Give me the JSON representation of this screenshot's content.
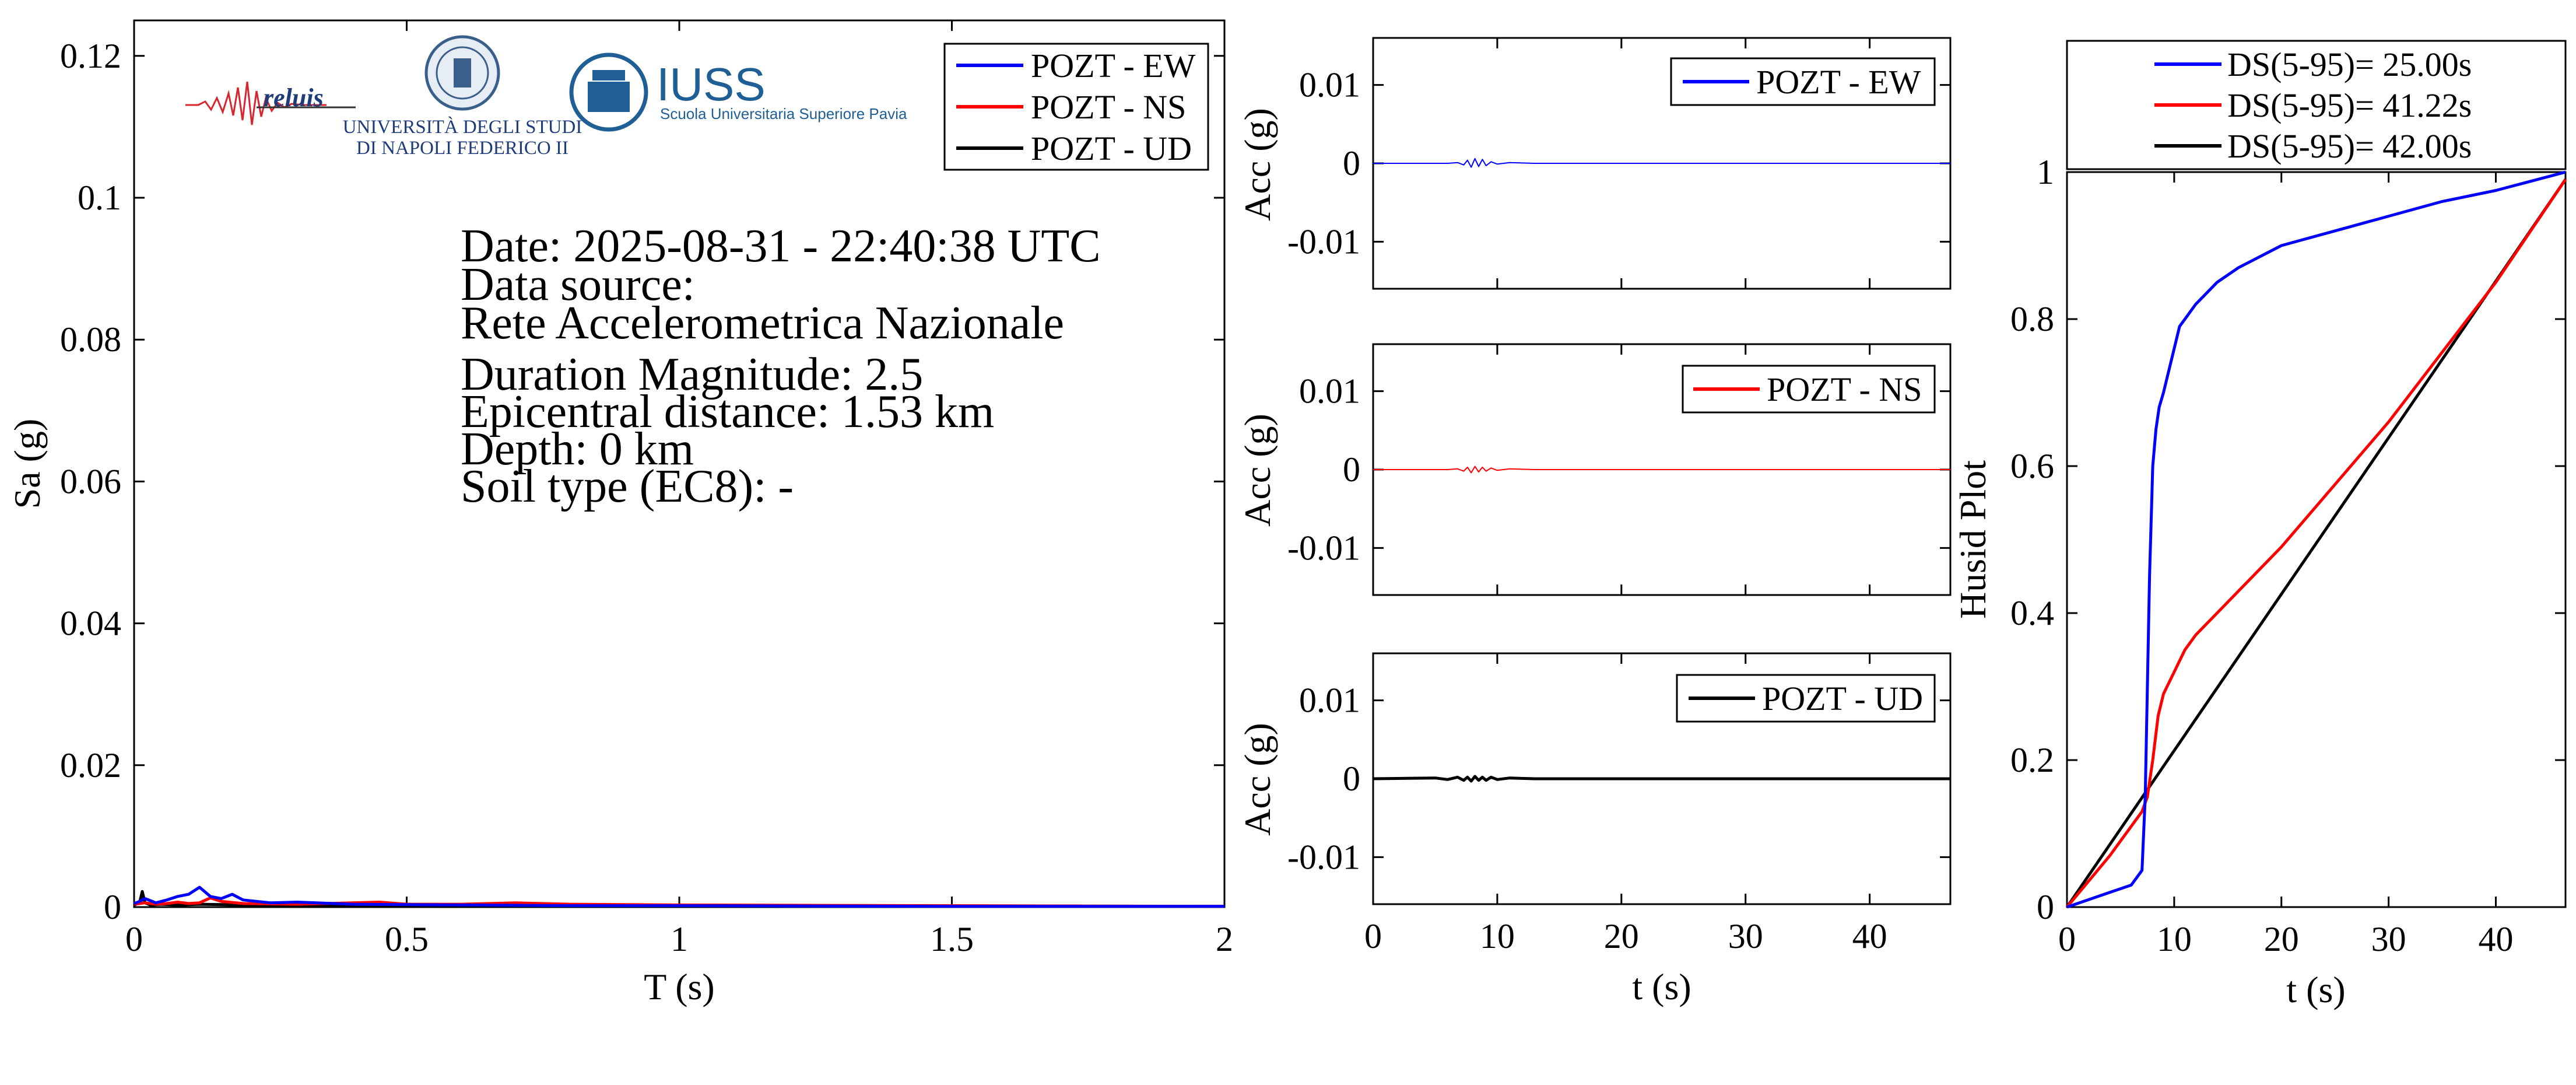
{
  "spectrum": {
    "xlabel": "T (s)",
    "ylabel": "Sa (g)",
    "xlim": [
      0,
      2
    ],
    "ylim": [
      0,
      0.125
    ],
    "xticks": [
      0,
      0.5,
      1,
      1.5,
      2
    ],
    "xtick_labels": [
      "0",
      "0.5",
      "1",
      "1.5",
      "2"
    ],
    "yticks": [
      0,
      0.02,
      0.04,
      0.06,
      0.08,
      0.1,
      0.12
    ],
    "ytick_labels": [
      "0",
      "0.02",
      "0.04",
      "0.06",
      "0.08",
      "0.1",
      "0.12"
    ],
    "legend": [
      "POZT - EW",
      "POZT - NS",
      "POZT - UD"
    ]
  },
  "info": {
    "date": "Date: 2025-08-31 - 22:40:38 UTC",
    "source_label": "Data source:",
    "source_value": "Rete Accelerometrica Nazionale",
    "magnitude": "Duration Magnitude: 2.5",
    "distance": "Epicentral distance: 1.53 km",
    "depth": "Depth: 0 km",
    "soil": "Soil type (EC8): -"
  },
  "logos": {
    "reluis": "reluis",
    "unina_line1": "UNIVERSITÀ DEGLI STUDI",
    "unina_line2": "DI NAPOLI FEDERICO II",
    "iuss": "IUSS",
    "iuss_sub": "Scuola Universitaria Superiore Pavia"
  },
  "accel": {
    "ylabel": "Acc (g)",
    "xlabel": "t (s)",
    "xlim": [
      0,
      46.5
    ],
    "ylim": [
      -0.016,
      0.016
    ],
    "xticks": [
      0,
      10,
      20,
      30,
      40
    ],
    "xtick_labels": [
      "0",
      "10",
      "20",
      "30",
      "40"
    ],
    "yticks": [
      -0.01,
      0,
      0.01
    ],
    "ytick_labels": [
      "-0.01",
      "0",
      "0.01"
    ],
    "panels": [
      {
        "legend": "POZT - EW"
      },
      {
        "legend": "POZT - NS"
      },
      {
        "legend": "POZT - UD"
      }
    ]
  },
  "husid": {
    "ylabel": "Husid Plot",
    "xlabel": "t (s)",
    "xlim": [
      0,
      46.5
    ],
    "ylim": [
      0,
      1
    ],
    "xticks": [
      0,
      10,
      20,
      30,
      40
    ],
    "xtick_labels": [
      "0",
      "10",
      "20",
      "30",
      "40"
    ],
    "yticks": [
      0,
      0.2,
      0.4,
      0.6,
      0.8,
      1
    ],
    "ytick_labels": [
      "0",
      "0.2",
      "0.4",
      "0.6",
      "0.8",
      "1"
    ],
    "legend": [
      "DS(5-95)= 25.00s",
      "DS(5-95)= 41.22s",
      "DS(5-95)= 42.00s"
    ]
  },
  "colors": {
    "ew": "#0000ff",
    "ns": "#ff0000",
    "ud": "#000000"
  },
  "chart_data": [
    {
      "type": "line",
      "xlabel": "T (s)",
      "ylabel": "Sa (g)",
      "xlim": [
        0,
        2
      ],
      "ylim": [
        0,
        0.125
      ],
      "legend_position": "top-right",
      "series": [
        {
          "name": "POZT - EW",
          "x": [
            0,
            0.01,
            0.02,
            0.04,
            0.06,
            0.08,
            0.1,
            0.12,
            0.14,
            0.16,
            0.18,
            0.2,
            0.25,
            0.3,
            0.4,
            0.6,
            0.8,
            1,
            1.5,
            2
          ],
          "y": [
            0.0005,
            0.0008,
            0.0012,
            0.0006,
            0.001,
            0.0015,
            0.0018,
            0.0028,
            0.0015,
            0.0012,
            0.0018,
            0.001,
            0.0006,
            0.0007,
            0.0004,
            0.0003,
            0.0002,
            0.0002,
            0.0001,
            0.0001
          ]
        },
        {
          "name": "POZT - NS",
          "x": [
            0,
            0.02,
            0.04,
            0.06,
            0.08,
            0.1,
            0.12,
            0.14,
            0.16,
            0.2,
            0.3,
            0.4,
            0.45,
            0.5,
            0.6,
            0.7,
            0.8,
            1,
            1.5,
            2
          ],
          "y": [
            0.0004,
            0.0006,
            0.0004,
            0.0005,
            0.0007,
            0.0005,
            0.0006,
            0.0013,
            0.0008,
            0.0005,
            0.0004,
            0.0006,
            0.0007,
            0.0004,
            0.0004,
            0.0006,
            0.0004,
            0.0003,
            0.0002,
            0.0001
          ]
        },
        {
          "name": "POZT - UD",
          "x": [
            0,
            0.01,
            0.015,
            0.02,
            0.03,
            0.05,
            0.08,
            0.12,
            0.2,
            0.3,
            0.5,
            0.7,
            1,
            1.5,
            2
          ],
          "y": [
            0.0003,
            0.0006,
            0.0022,
            0.0006,
            0.0003,
            0.0004,
            0.0003,
            0.0004,
            0.0003,
            0.0002,
            0.0002,
            0.0002,
            0.0001,
            0.0001,
            0.0001
          ]
        }
      ]
    },
    {
      "type": "line",
      "xlabel": "t (s)",
      "ylabel": "Acc (g)",
      "xlim": [
        0,
        46.5
      ],
      "ylim": [
        -0.016,
        0.016
      ],
      "legend_position": "top-right",
      "series": [
        {
          "name": "POZT - EW",
          "x": [
            0,
            6,
            6.8,
            7.3,
            7.6,
            7.9,
            8.2,
            8.5,
            8.8,
            9.1,
            9.5,
            10,
            11,
            13,
            46.5
          ],
          "y": [
            0,
            0,
            0.0001,
            -0.0002,
            0.0004,
            -0.0005,
            0.0006,
            -0.0004,
            0.0005,
            -0.0003,
            0.0002,
            -0.0001,
            0.0001,
            0,
            0
          ]
        }
      ]
    },
    {
      "type": "line",
      "xlabel": "t (s)",
      "ylabel": "Acc (g)",
      "xlim": [
        0,
        46.5
      ],
      "ylim": [
        -0.016,
        0.016
      ],
      "legend_position": "top-right",
      "series": [
        {
          "name": "POZT - NS",
          "x": [
            0,
            6,
            6.8,
            7.3,
            7.6,
            7.9,
            8.2,
            8.5,
            8.8,
            9.1,
            9.5,
            10,
            11,
            13,
            46.5
          ],
          "y": [
            0,
            0,
            0.0001,
            -0.0002,
            0.0003,
            -0.0004,
            0.0004,
            -0.0003,
            0.0003,
            -0.0002,
            0.0002,
            -0.0001,
            0.0001,
            0,
            0
          ]
        }
      ]
    },
    {
      "type": "line",
      "xlabel": "t (s)",
      "ylabel": "Acc (g)",
      "xlim": [
        0,
        46.5
      ],
      "ylim": [
        -0.016,
        0.016
      ],
      "legend_position": "top-right",
      "series": [
        {
          "name": "POZT - UD",
          "x": [
            0,
            5,
            6,
            6.8,
            7.3,
            7.6,
            7.9,
            8.2,
            8.5,
            8.8,
            9.1,
            9.5,
            10,
            11,
            13,
            46.5
          ],
          "y": [
            0,
            0.0001,
            -0.0001,
            0.0002,
            -0.0002,
            0.0002,
            -0.0003,
            0.0003,
            -0.0002,
            0.0002,
            -0.0002,
            0.0002,
            -0.0001,
            0.0001,
            0,
            0
          ]
        }
      ]
    },
    {
      "type": "line",
      "xlabel": "t (s)",
      "ylabel": "Husid Plot",
      "xlim": [
        0,
        46.5
      ],
      "ylim": [
        0,
        1
      ],
      "legend_position": "top",
      "series": [
        {
          "name": "DS(5-95)= 25.00s",
          "x": [
            0,
            2,
            4,
            6,
            7,
            7.3,
            7.5,
            7.7,
            8,
            8.3,
            8.6,
            9,
            9.5,
            10,
            10.5,
            11,
            12,
            14,
            16,
            20,
            25,
            30,
            35,
            40,
            46.5
          ],
          "y": [
            0,
            0.01,
            0.02,
            0.03,
            0.05,
            0.15,
            0.3,
            0.45,
            0.6,
            0.65,
            0.68,
            0.7,
            0.73,
            0.76,
            0.79,
            0.8,
            0.82,
            0.85,
            0.87,
            0.9,
            0.92,
            0.94,
            0.96,
            0.975,
            1
          ]
        },
        {
          "name": "DS(5-95)= 41.22s",
          "x": [
            0,
            2,
            4,
            6,
            7,
            7.5,
            8,
            8.5,
            9,
            10,
            11,
            12,
            14,
            20,
            30,
            40,
            46.5
          ],
          "y": [
            0,
            0.035,
            0.07,
            0.11,
            0.13,
            0.15,
            0.2,
            0.26,
            0.29,
            0.32,
            0.35,
            0.37,
            0.4,
            0.49,
            0.66,
            0.85,
            0.99
          ]
        },
        {
          "name": "DS(5-95)= 42.00s",
          "x": [
            0,
            46.5
          ],
          "y": [
            0,
            0.99
          ]
        }
      ]
    }
  ]
}
